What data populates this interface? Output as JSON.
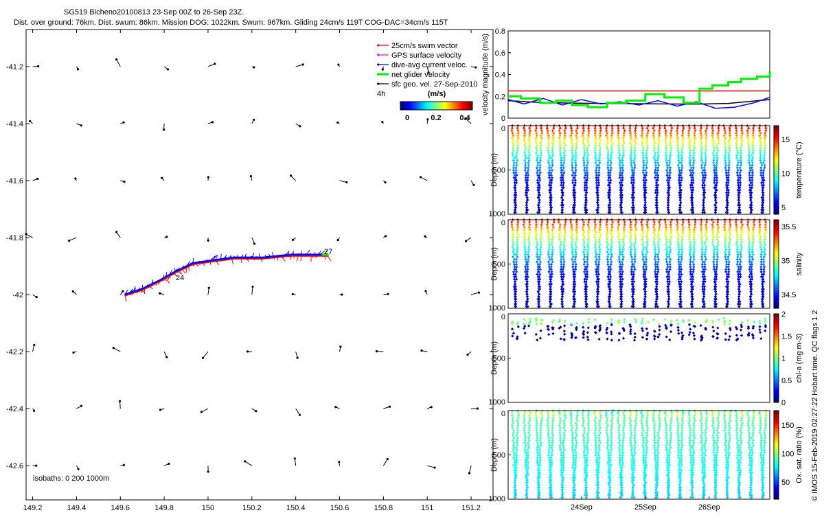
{
  "header": {
    "line1": "SG519 Bicheno20100813 23-Sep 00Z to 26-Sep 23Z.",
    "line2": "Dist. over ground: 76km. Dist. swum: 86km. Mission DOG: 1022km. Swum: 967km. Gliding 24cm/s 119T COG-DAC=34cm/s 115T"
  },
  "credit": "© IMOS 15-Feb-2019 02:27:22 Hobart time. QC flags 1  2",
  "colors": {
    "swim": "#ff0000",
    "gps": "#ff00ff",
    "dac": "#0000ff",
    "net": "#00ee00",
    "sfc": "#000000"
  },
  "chart_data": [
    {
      "type": "map",
      "x_ticks": [
        "149.2",
        "149.4",
        "149.6",
        "149.8",
        "150",
        "150.2",
        "150.4",
        "150.6",
        "150.8",
        "151",
        "151.2"
      ],
      "y_ticks": [
        "-41.2",
        "-41.4",
        "-41.6",
        "-41.8",
        "-42",
        "-42.2",
        "-42.4",
        "-42.6"
      ],
      "xlim": [
        149.17,
        151.3
      ],
      "ylim": [
        -42.72,
        -41.07
      ],
      "legend": {
        "items": [
          {
            "label": "25cm/s swim vector",
            "color": "#ff0000"
          },
          {
            "label": "GPS surface velocity",
            "color": "#ff00ff"
          },
          {
            "label": "dive-avg current veloc.",
            "color": "#0000ff"
          },
          {
            "label": "net glider velocity",
            "color": "#00ee00"
          },
          {
            "label": "sfc geo. vel. 27-Sep-2010",
            "color": "#000000"
          }
        ],
        "scale_label": "4h",
        "colorbar_title": "(m/s)",
        "colorbar_ticks": [
          "0",
          "0.2",
          "0.4"
        ]
      },
      "track_labels": [
        "24",
        "27"
      ],
      "isobaths_label": "isobaths: 0    200  1000m",
      "track": [
        [
          149.62,
          -42.0
        ],
        [
          149.7,
          -41.98
        ],
        [
          149.78,
          -41.95
        ],
        [
          149.85,
          -41.92
        ],
        [
          149.93,
          -41.89
        ],
        [
          150.02,
          -41.88
        ],
        [
          150.12,
          -41.87
        ],
        [
          150.25,
          -41.87
        ],
        [
          150.38,
          -41.86
        ],
        [
          150.47,
          -41.86
        ],
        [
          150.55,
          -41.86
        ]
      ]
    },
    {
      "type": "line",
      "ylabel": "velocity magnitude (m/s)",
      "ylim": [
        0,
        0.8
      ],
      "y_ticks": [
        "0",
        "0.2",
        "0.4",
        "0.6",
        "0.8"
      ],
      "x_day_range": [
        22.85,
        26.95
      ],
      "series": [
        {
          "color": "#ff0000",
          "x": [
            22.85,
            26.95
          ],
          "y": [
            0.25,
            0.25
          ]
        },
        {
          "color": "#000000",
          "x": [
            22.85,
            23.3,
            23.8,
            24.3,
            24.8,
            25.3,
            25.8,
            26.3,
            26.95
          ],
          "y": [
            0.16,
            0.145,
            0.138,
            0.135,
            0.132,
            0.13,
            0.128,
            0.135,
            0.17
          ]
        },
        {
          "color": "#0000ff",
          "x": [
            22.85,
            23.1,
            23.4,
            23.7,
            24.0,
            24.3,
            24.6,
            24.9,
            25.2,
            25.5,
            25.8,
            26.1,
            26.4,
            26.7,
            26.95
          ],
          "y": [
            0.17,
            0.13,
            0.18,
            0.12,
            0.17,
            0.13,
            0.15,
            0.12,
            0.16,
            0.11,
            0.15,
            0.09,
            0.1,
            0.14,
            0.19
          ]
        },
        {
          "color": "#00ee00",
          "x": [
            22.85,
            23.05,
            23.35,
            23.6,
            23.85,
            24.1,
            24.4,
            24.7,
            25.0,
            25.3,
            25.6,
            25.85,
            26.05,
            26.3,
            26.5,
            26.75,
            26.95
          ],
          "y": [
            0.2,
            0.18,
            0.14,
            0.16,
            0.12,
            0.1,
            0.14,
            0.16,
            0.22,
            0.19,
            0.14,
            0.27,
            0.3,
            0.33,
            0.36,
            0.38,
            0.43
          ]
        }
      ]
    },
    {
      "type": "scatter",
      "ylabel": "Depth (m)",
      "cbar_label": "temperature (°C)",
      "ylim": [
        1000,
        0
      ],
      "y_ticks": [
        "0",
        "500",
        "1000"
      ],
      "cbar_ticks": [
        "5",
        "10",
        "15"
      ],
      "cbar_range": [
        4,
        17
      ],
      "surface_value": 16,
      "bottom_value": 4.5
    },
    {
      "type": "scatter",
      "ylabel": "Depth (m)",
      "cbar_label": "salinity",
      "ylim": [
        1000,
        0
      ],
      "y_ticks": [
        "0",
        "500",
        "1000"
      ],
      "cbar_ticks": [
        "34.5",
        "35",
        "35.5"
      ],
      "cbar_range": [
        34.3,
        35.6
      ],
      "surface_value": 35.45,
      "bottom_value": 34.35
    },
    {
      "type": "scatter",
      "ylabel": "Depth (m)",
      "cbar_label": "chl-a (mg m-3)",
      "ylim": [
        1000,
        0
      ],
      "y_ticks": [
        "0",
        "500",
        "1000"
      ],
      "cbar_ticks": [
        "0",
        "0.5",
        "1",
        "1.5",
        "2"
      ],
      "cbar_range": [
        0,
        2
      ],
      "surface_value": 0.9,
      "bottom_value": 0.05
    },
    {
      "type": "scatter",
      "ylabel": "Depth (m)",
      "cbar_label": "Ox. sat. ratio (%)",
      "ylim": [
        1000,
        0
      ],
      "y_ticks": [
        "0",
        "500",
        "1000"
      ],
      "cbar_ticks": [
        "50",
        "100",
        "150"
      ],
      "cbar_range": [
        20,
        175
      ],
      "surface_value": 95,
      "bottom_value": 70,
      "x_ticks": [
        "24Sep",
        "25Sep",
        "26Sep"
      ]
    }
  ]
}
